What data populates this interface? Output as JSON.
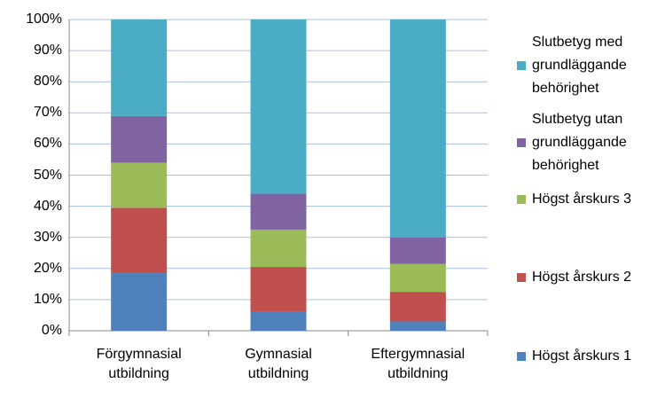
{
  "chart_data": {
    "type": "stacked_bar",
    "categories": [
      "Förgymnasial utbildning",
      "Gymnasial utbildning",
      "Eftergymnasial utbildning"
    ],
    "series": [
      {
        "name": "Högst årskurs 1",
        "color": "#4f81bd",
        "values": [
          18.5,
          6,
          3
        ]
      },
      {
        "name": "Högst årskurs 2",
        "color": "#c0504d",
        "values": [
          21,
          14.5,
          9.5
        ]
      },
      {
        "name": "Högst årskurs 3",
        "color": "#9bbb59",
        "values": [
          14.5,
          12,
          9
        ]
      },
      {
        "name": "Slutbetyg utan grundläggande behörighet",
        "color": "#8064a2",
        "values": [
          15,
          11.5,
          8.5
        ]
      },
      {
        "name": "Slutbetyg med grundläggande behörighet",
        "color": "#4bacc6",
        "values": [
          31,
          56,
          70
        ]
      }
    ],
    "ylim": [
      0,
      100
    ],
    "yticks": [
      {
        "value": 0,
        "label": "0%"
      },
      {
        "value": 10,
        "label": "10%"
      },
      {
        "value": 20,
        "label": "20%"
      },
      {
        "value": 30,
        "label": "30%"
      },
      {
        "value": 40,
        "label": "40%"
      },
      {
        "value": 50,
        "label": "50%"
      },
      {
        "value": 60,
        "label": "60%"
      },
      {
        "value": 70,
        "label": "70%"
      },
      {
        "value": 80,
        "label": "80%"
      },
      {
        "value": 90,
        "label": "90%"
      },
      {
        "value": 100,
        "label": "100%"
      }
    ],
    "grid": true
  }
}
